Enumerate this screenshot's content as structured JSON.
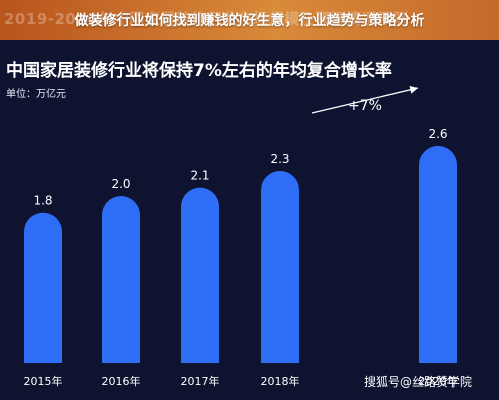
{
  "banner": {
    "title": "做装修行业如何找到赚钱的好生意，行业趋势与策略分析",
    "background_text": "2019-2020年中国家居装修行业市场规模及预测情况预测"
  },
  "chart_data": {
    "type": "bar",
    "title": "中国家居装修行业将保持7%左右的年均复合增长率",
    "unit_label": "单位：万亿元",
    "categories": [
      "2015年",
      "2016年",
      "2017年",
      "2018年",
      "2020年"
    ],
    "values": [
      1.8,
      2.0,
      2.1,
      2.3,
      2.6
    ],
    "value_labels": [
      "1.8",
      "2.0",
      "2.1",
      "2.3",
      "2.6"
    ],
    "annotation": "+7%",
    "colors": {
      "bar": "#2f6df6",
      "background": "#0e1430",
      "text": "#ffffff"
    }
  },
  "watermark": "搜狐号@丝路赞学院"
}
